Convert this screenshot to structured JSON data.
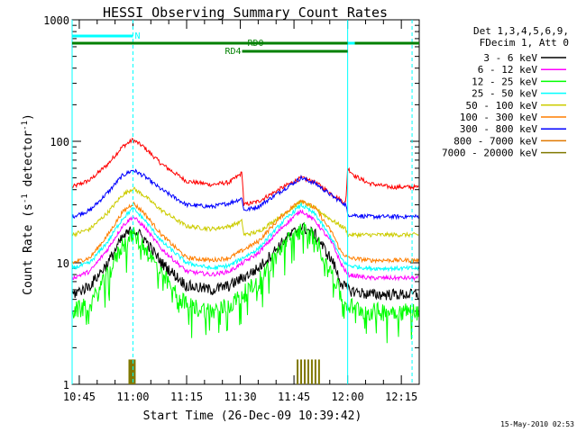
{
  "chart_data": {
    "type": "line",
    "title": "HESSI Observing Summary Count Rates",
    "xlabel": "Start Time (26-Dec-09 10:39:42)",
    "ylabel_main": "Count Rate (s",
    "ylabel_sup1": "-1",
    "ylabel_mid": " detector",
    "ylabel_sup2": "-1",
    "ylabel_end": ")",
    "yscale": "log",
    "ylim": [
      1,
      1000
    ],
    "xlim_minutes": [
      -17,
      80
    ],
    "x_ticks": [
      {
        "label": "10:45",
        "minute": -15
      },
      {
        "label": "11:00",
        "minute": 0
      },
      {
        "label": "11:15",
        "minute": 15
      },
      {
        "label": "11:30",
        "minute": 30
      },
      {
        "label": "11:45",
        "minute": 45
      },
      {
        "label": "12:00",
        "minute": 60
      },
      {
        "label": "12:15",
        "minute": 75
      }
    ],
    "y_ticks": [
      {
        "label": "1",
        "value": 1
      },
      {
        "label": "10",
        "value": 10
      },
      {
        "label": "100",
        "value": 100
      },
      {
        "label": "1000",
        "value": 1000
      }
    ],
    "legend_header": [
      "Det 1,3,4,5,6,9,",
      "FDecim 1, Att 0"
    ],
    "legend_position": "right",
    "series": [
      {
        "name": "3 - 6 keV",
        "color": "#000000",
        "x": [
          -17,
          -12,
          -7,
          -3,
          0,
          3,
          8,
          15,
          22,
          27,
          35,
          42,
          47,
          51,
          56,
          58,
          60,
          66,
          72,
          80
        ],
        "y": [
          5.5,
          6.5,
          10,
          16,
          19,
          16,
          10,
          6.5,
          6,
          6.5,
          9,
          15,
          20,
          17,
          10,
          7,
          6,
          5.5,
          5.5,
          5.5
        ]
      },
      {
        "name": "6 - 12 keV",
        "color": "#ff00ff",
        "x": [
          -17,
          -12,
          -7,
          -3,
          0,
          3,
          8,
          15,
          22,
          27,
          35,
          42,
          47,
          51,
          56,
          58,
          60,
          66,
          72,
          80
        ],
        "y": [
          7.5,
          8.5,
          13,
          20,
          24,
          20,
          13,
          8.5,
          8,
          8.5,
          12,
          20,
          27,
          22,
          14,
          10,
          8,
          7.5,
          7.5,
          7.5
        ]
      },
      {
        "name": "12 - 25 keV",
        "color": "#00ff00",
        "x": [
          -17,
          -12,
          -7,
          -3,
          0,
          3,
          8,
          15,
          22,
          27,
          35,
          42,
          47,
          51,
          56,
          58,
          60,
          66,
          72,
          80
        ],
        "y": [
          4,
          4.5,
          8,
          14,
          17,
          14,
          8,
          4.5,
          4,
          4.5,
          7,
          14,
          19,
          16,
          8,
          5.5,
          4.5,
          4,
          4,
          4
        ]
      },
      {
        "name": "25 - 50 keV",
        "color": "#00ffff",
        "x": [
          -17,
          -12,
          -7,
          -3,
          0,
          3,
          8,
          15,
          22,
          27,
          35,
          42,
          47,
          51,
          56,
          58,
          60,
          66,
          72,
          80
        ],
        "y": [
          9,
          10,
          15,
          23,
          28,
          23,
          15,
          10,
          9,
          9.5,
          13,
          22,
          30,
          25,
          15,
          11,
          9.5,
          9,
          9,
          9
        ]
      },
      {
        "name": "50 - 100 keV",
        "color": "#cccc00",
        "x": [
          -17,
          -12,
          -7,
          -3,
          0,
          3,
          8,
          15,
          22,
          27,
          30.5,
          31,
          35,
          42,
          47,
          51,
          56,
          59.5,
          60,
          66,
          72,
          80
        ],
        "y": [
          17,
          19,
          26,
          36,
          41,
          36,
          27,
          20,
          19,
          20,
          22,
          17,
          18,
          25,
          32,
          28,
          22,
          19,
          17,
          17,
          17,
          17
        ]
      },
      {
        "name": "100 - 300 keV",
        "color": "#ff7f00",
        "x": [
          -17,
          -12,
          -7,
          -3,
          0,
          3,
          8,
          15,
          22,
          27,
          35,
          42,
          47,
          51,
          56,
          58,
          60,
          66,
          72,
          80
        ],
        "y": [
          10,
          11,
          17,
          26,
          31,
          26,
          17,
          11,
          10.5,
          11,
          15,
          25,
          33,
          28,
          17,
          12.5,
          11,
          10.5,
          10.5,
          10.5
        ]
      },
      {
        "name": "300 - 800 keV",
        "color": "#0000ff",
        "x": [
          -17,
          -12,
          -7,
          -3,
          0,
          3,
          8,
          15,
          22,
          27,
          30.5,
          31,
          35,
          42,
          47,
          51,
          56,
          59.5,
          60,
          66,
          72,
          80
        ],
        "y": [
          24,
          27,
          38,
          52,
          58,
          52,
          40,
          30,
          29,
          31,
          34,
          27,
          29,
          40,
          50,
          45,
          35,
          30,
          25,
          24,
          24,
          24
        ]
      },
      {
        "name": "800 - 7000 keV",
        "color": "#e07800",
        "x": [],
        "y": []
      },
      {
        "name": "7000 - 20000 keV",
        "color": "#807800",
        "x": [],
        "y": []
      },
      {
        "name": "",
        "color": "#ff0000",
        "x": [
          -17,
          -12,
          -7,
          -3,
          0,
          3,
          8,
          15,
          22,
          27,
          30.5,
          31,
          35,
          42,
          47,
          51,
          56,
          59.5,
          60,
          62,
          66,
          72,
          80
        ],
        "y": [
          42,
          48,
          65,
          90,
          103,
          90,
          65,
          47,
          44,
          46,
          55,
          30,
          32,
          42,
          50,
          46,
          36,
          31,
          60,
          52,
          45,
          42,
          42
        ]
      },
      {
        "name": "",
        "color": "#807800",
        "x": [
          -1,
          -0.5,
          0,
          0.5,
          46,
          47,
          48,
          49,
          50,
          51,
          52
        ],
        "y": [
          1.6,
          1.6,
          1.6,
          1.6,
          1.6,
          1.6,
          1.6,
          1.6,
          1.6,
          1.6,
          1.6
        ]
      }
    ],
    "annotations": [
      {
        "label": "N",
        "color": "#00ffff"
      },
      {
        "label": "RD0",
        "color": "#008000"
      },
      {
        "label": "RD4",
        "color": "#008000"
      }
    ],
    "attenuator_bars": [
      {
        "color": "#00ffff",
        "x": [
          -17,
          0
        ]
      },
      {
        "color": "#00ffff",
        "x": [
          60,
          80
        ]
      },
      {
        "color": "#008000",
        "x": [
          -17,
          60
        ]
      },
      {
        "color": "#008000",
        "x": [
          62,
          80
        ]
      },
      {
        "color": "#008000",
        "x": [
          30.5,
          60
        ]
      }
    ],
    "vlines": [
      {
        "color": "#00ffff",
        "x": -17,
        "style": "solid"
      },
      {
        "color": "#00ffff",
        "x": 0,
        "style": "dashed"
      },
      {
        "color": "#00ffff",
        "x": 60,
        "style": "solid"
      },
      {
        "color": "#00ffff",
        "x": 78,
        "style": "dashed"
      }
    ],
    "footer_date": "15-May-2010 02:53"
  }
}
